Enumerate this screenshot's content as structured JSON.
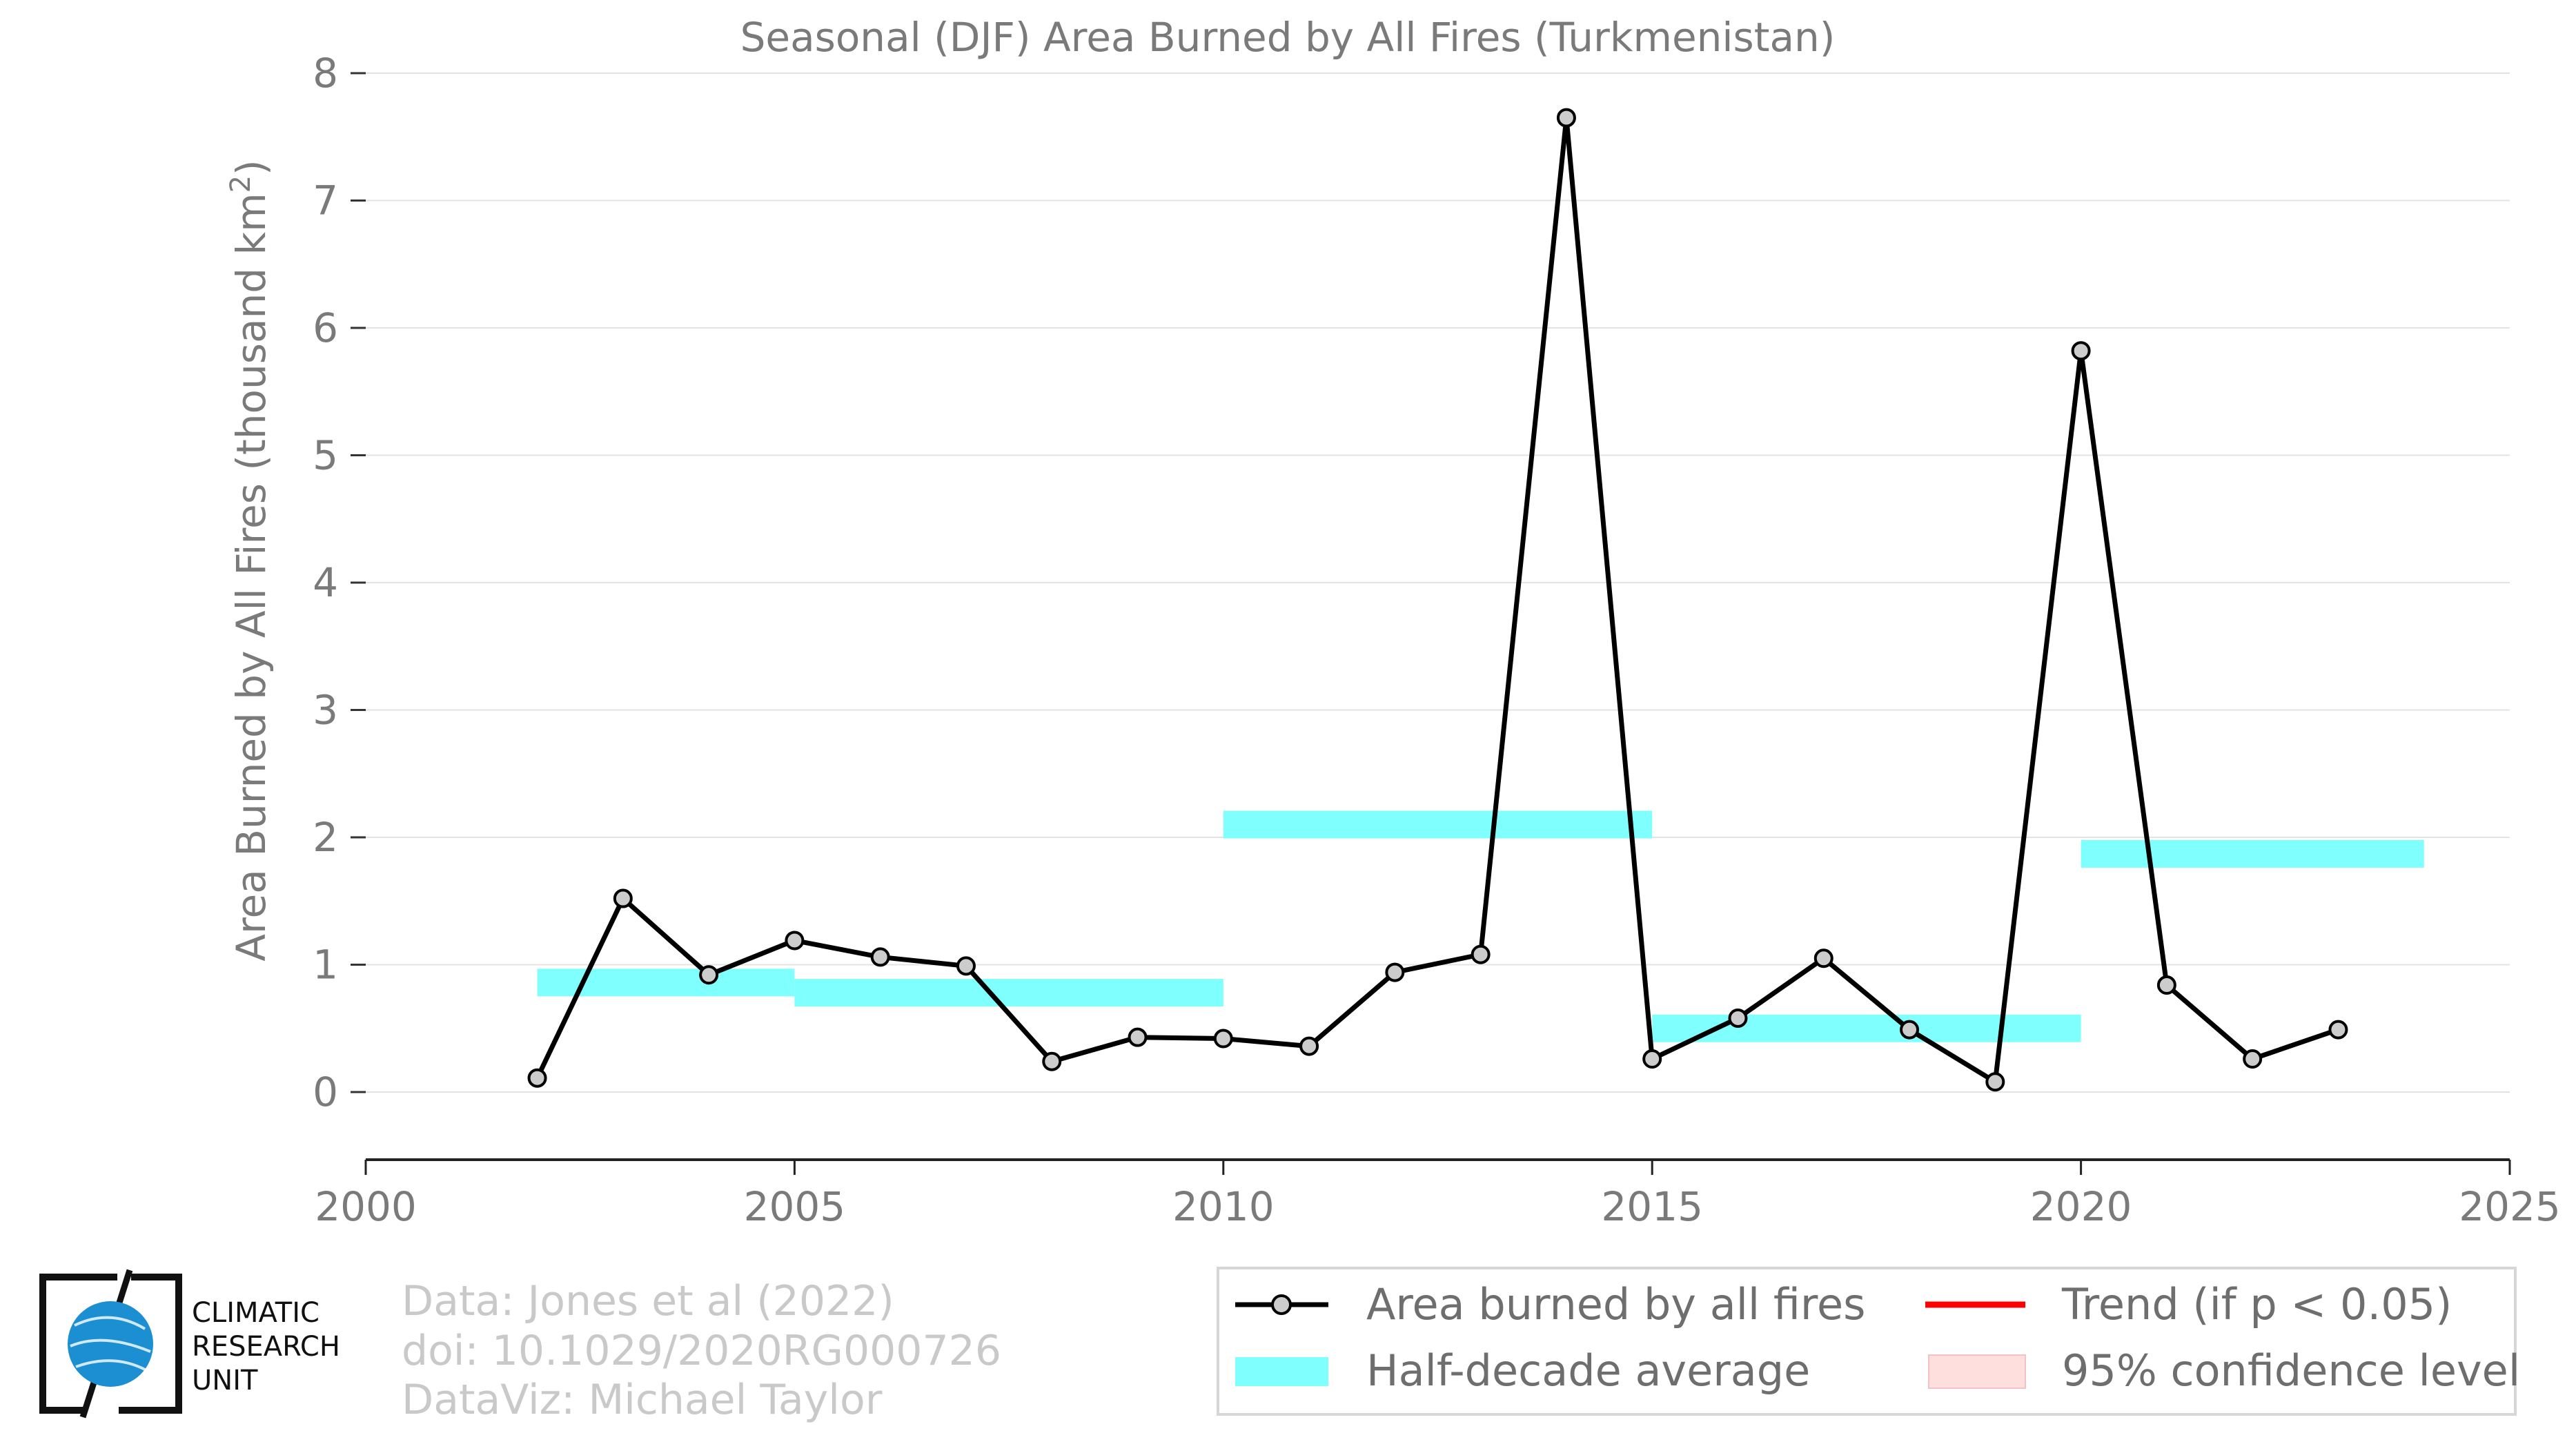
{
  "chart_data": {
    "type": "line",
    "title": "Seasonal (DJF) Area Burned by All Fires (Turkmenistan)",
    "ylabel": "Area Burned by All Fires (thousand km",
    "ylabel_sup": "2",
    "ylabel_close": ")",
    "xlim": [
      2000,
      2025
    ],
    "ylim": [
      0,
      8
    ],
    "xticks": [
      2000,
      2005,
      2010,
      2015,
      2020,
      2025
    ],
    "yticks": [
      0,
      1,
      2,
      3,
      4,
      5,
      6,
      7,
      8
    ],
    "grid": true,
    "series": [
      {
        "name": "Area burned by all fires",
        "color": "#000000",
        "x": [
          2002,
          2003,
          2004,
          2005,
          2006,
          2007,
          2008,
          2009,
          2010,
          2011,
          2012,
          2013,
          2014,
          2015,
          2016,
          2017,
          2018,
          2019,
          2020,
          2021,
          2022,
          2023
        ],
        "y": [
          0.11,
          1.52,
          0.92,
          1.19,
          1.06,
          0.99,
          0.24,
          0.43,
          0.42,
          0.36,
          0.94,
          1.08,
          7.65,
          0.26,
          0.58,
          1.05,
          0.49,
          0.08,
          5.82,
          0.84,
          0.26,
          0.49
        ]
      }
    ],
    "half_decade_average": {
      "name": "Half-decade average",
      "color": "#80ffff",
      "segments": [
        {
          "x0": 2002,
          "x1": 2005,
          "y": 0.86
        },
        {
          "x0": 2005,
          "x1": 2010,
          "y": 0.78
        },
        {
          "x0": 2010,
          "x1": 2015,
          "y": 2.1
        },
        {
          "x0": 2015,
          "x1": 2020,
          "y": 0.5
        },
        {
          "x0": 2020,
          "x1": 2024,
          "y": 1.87
        }
      ]
    },
    "legend": {
      "placement": "bottom-right",
      "items": [
        {
          "label": "Area burned by all fires",
          "kind": "line-marker",
          "color": "#000000"
        },
        {
          "label": "Trend (if p < 0.05)",
          "kind": "line",
          "color": "#ff0000"
        },
        {
          "label": "Half-decade average",
          "kind": "band",
          "color": "#80ffff"
        },
        {
          "label": "95% confidence level",
          "kind": "patch",
          "color": "#ffdede"
        }
      ]
    }
  },
  "credits": {
    "line1": "Data: Jones et al (2022)",
    "line2": "doi: 10.1029/2020RG000726",
    "line3": "DataViz: Michael Taylor"
  },
  "logo": {
    "line1": "CLIMATIC",
    "line2": "RESEARCH",
    "line3": "UNIT",
    "globe_color": "#1b8fd1"
  }
}
